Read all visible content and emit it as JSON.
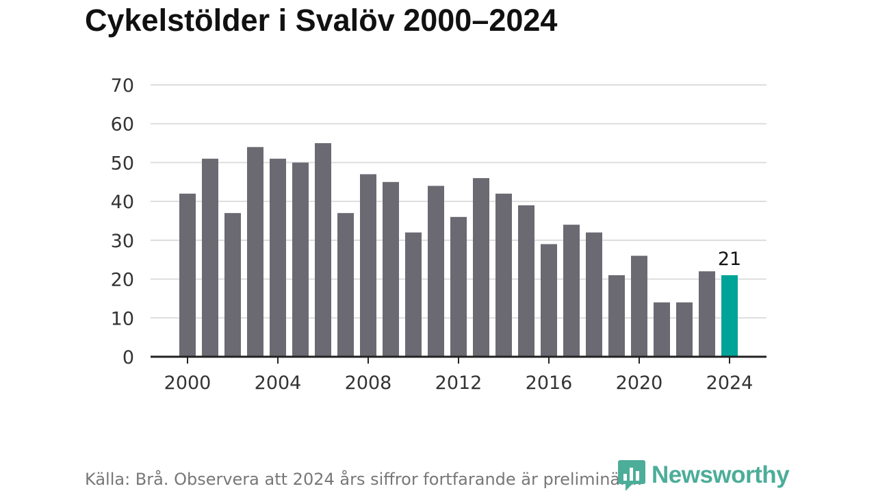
{
  "title": "Cykelstölder i Svalöv 2000–2024",
  "source_note": "Källa: Brå. Observera att 2024 års siffror fortfarande är preliminära.",
  "brand": {
    "name": "Newsworthy",
    "icon": "bar-chart-logo-icon",
    "color": "#4cad99"
  },
  "colors": {
    "bar": "#6b6a72",
    "highlight": "#00a398",
    "grid": "#dddddd",
    "axis": "#222222"
  },
  "chart_data": {
    "type": "bar",
    "title": "Cykelstölder i Svalöv 2000–2024",
    "xlabel": "",
    "ylabel": "",
    "categories": [
      "2000",
      "2001",
      "2002",
      "2003",
      "2004",
      "2005",
      "2006",
      "2007",
      "2008",
      "2009",
      "2010",
      "2011",
      "2012",
      "2013",
      "2014",
      "2015",
      "2016",
      "2017",
      "2018",
      "2019",
      "2020",
      "2021",
      "2022",
      "2023",
      "2024"
    ],
    "values": [
      42,
      51,
      37,
      54,
      51,
      50,
      55,
      37,
      47,
      45,
      32,
      44,
      36,
      46,
      42,
      39,
      29,
      34,
      32,
      21,
      26,
      14,
      14,
      22,
      21
    ],
    "x_tick_labels": [
      "2000",
      "2004",
      "2008",
      "2012",
      "2016",
      "2020",
      "2024"
    ],
    "y_ticks": [
      "0",
      "10",
      "20",
      "30",
      "40",
      "50",
      "60",
      "70"
    ],
    "ylim": [
      0,
      70
    ],
    "grid": "horizontal",
    "highlight": {
      "category": "2024",
      "label": "21"
    }
  }
}
